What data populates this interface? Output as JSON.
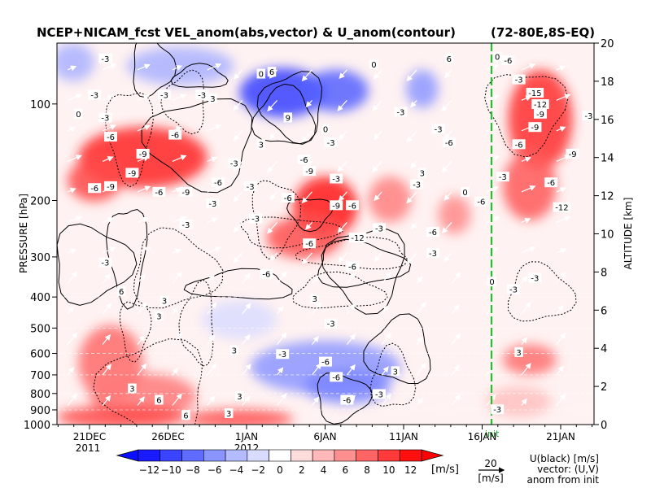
{
  "chart_data": {
    "type": "heatmap",
    "title": "NCEP+NICAM_fcst VEL_anom(abs,vector) & U_anom(contour)",
    "region": "(72-80E,8S-EQ)",
    "ylabel": "PRESSURE [hPa]",
    "y2label": "ALTITUDE [km]",
    "y_ticks": [
      100,
      200,
      300,
      400,
      500,
      600,
      700,
      800,
      900,
      1000
    ],
    "y_tick_labels": [
      "100",
      "200",
      "300",
      "400",
      "500",
      "600",
      "700",
      "800",
      "900",
      "1000"
    ],
    "y2_ticks": [
      0,
      2,
      4,
      6,
      8,
      10,
      12,
      14,
      16,
      18,
      20
    ],
    "y2_tick_labels": [
      "0",
      "2",
      "4",
      "6",
      "8",
      "10",
      "12",
      "14",
      "16",
      "18",
      "20"
    ],
    "x_tick_labels": [
      "21DEC",
      "26DEC",
      "1JAN",
      "6JAN",
      "11JAN",
      "16JAN",
      "21JAN"
    ],
    "x_year_labels": [
      "2011",
      "2012"
    ],
    "init_label": "init",
    "colorbar": {
      "ticks": [
        -12,
        -10,
        -8,
        -6,
        -4,
        -2,
        0,
        2,
        4,
        6,
        8,
        10,
        12
      ],
      "tick_labels": [
        "−12",
        "−10",
        "−8",
        "−6",
        "−4",
        "−2",
        "0",
        "2",
        "4",
        "6",
        "8",
        "10",
        "12"
      ],
      "unit": "[m/s]",
      "colors": [
        "#1a1aff",
        "#3a44ff",
        "#5f6cff",
        "#8b95ff",
        "#b4bbff",
        "#dadcff",
        "#ffffff",
        "#ffdcdc",
        "#ffb9b9",
        "#ff9090",
        "#ff6565",
        "#ff3a3a",
        "#ff1010"
      ]
    },
    "legend": {
      "ref_value": "20",
      "ref_unit": "[m/s]",
      "lines": [
        "U(black) [m/s]",
        "vector: (U,V)",
        "anom from init"
      ]
    },
    "contour_labels": [
      {
        "v": "-3",
        "x": 0.09,
        "y": 19.2
      },
      {
        "v": "-3",
        "x": 0.07,
        "y": 17.3
      },
      {
        "v": "-3",
        "x": 0.2,
        "y": 17.3
      },
      {
        "v": "-3",
        "x": 0.27,
        "y": 17.3
      },
      {
        "v": "0",
        "x": 0.04,
        "y": 16.3
      },
      {
        "v": "-3",
        "x": 0.09,
        "y": 16.1
      },
      {
        "v": "-6",
        "x": 0.1,
        "y": 15.1
      },
      {
        "v": "-6",
        "x": 0.22,
        "y": 15.2
      },
      {
        "v": "-6",
        "x": -0.01,
        "y": 14.5
      },
      {
        "v": "-9",
        "x": 0.16,
        "y": 14.2
      },
      {
        "v": "-9",
        "x": 0.14,
        "y": 13.2
      },
      {
        "v": "-3",
        "x": 0.33,
        "y": 13.7
      },
      {
        "v": "-6",
        "x": 0.07,
        "y": 12.4
      },
      {
        "v": "-9",
        "x": 0.1,
        "y": 12.5
      },
      {
        "v": "-6",
        "x": 0.19,
        "y": 12.2
      },
      {
        "v": "-9",
        "x": 0.24,
        "y": 12.2
      },
      {
        "v": "-6",
        "x": 0.3,
        "y": 12.7
      },
      {
        "v": "-3",
        "x": 0.36,
        "y": 12.5
      },
      {
        "v": "-3",
        "x": 0.24,
        "y": 10.5
      },
      {
        "v": "-3",
        "x": 0.29,
        "y": 11.6
      },
      {
        "v": "-6",
        "x": 0.43,
        "y": 11.9
      },
      {
        "v": "0",
        "x": 0.38,
        "y": 18.4
      },
      {
        "v": "6",
        "x": 0.4,
        "y": 18.5
      },
      {
        "v": "3",
        "x": 0.29,
        "y": 17.1
      },
      {
        "v": "9",
        "x": 0.43,
        "y": 16.1
      },
      {
        "v": "3",
        "x": 0.38,
        "y": 14.7
      },
      {
        "v": "0",
        "x": 0.5,
        "y": 15.5
      },
      {
        "v": "-3",
        "x": 0.51,
        "y": 14.8
      },
      {
        "v": "-6",
        "x": 0.46,
        "y": 13.9
      },
      {
        "v": "-9",
        "x": 0.47,
        "y": 13.3
      },
      {
        "v": "-3",
        "x": 0.52,
        "y": 12.9
      },
      {
        "v": "-9",
        "x": 0.52,
        "y": 11.5
      },
      {
        "v": "-6",
        "x": 0.55,
        "y": 11.5
      },
      {
        "v": "-12",
        "x": 0.56,
        "y": 9.8
      },
      {
        "v": "-6",
        "x": 0.47,
        "y": 9.5
      },
      {
        "v": "-6",
        "x": 0.55,
        "y": 8.3
      },
      {
        "v": "-6",
        "x": 0.39,
        "y": 7.9
      },
      {
        "v": "-3",
        "x": 0.37,
        "y": 10.8
      },
      {
        "v": "-3",
        "x": 0.6,
        "y": 10.3
      },
      {
        "v": "-3",
        "x": 0.7,
        "y": 9.0
      },
      {
        "v": "-6",
        "x": 0.7,
        "y": 10.1
      },
      {
        "v": "-3",
        "x": 0.64,
        "y": 16.4
      },
      {
        "v": "-3",
        "x": 0.71,
        "y": 15.5
      },
      {
        "v": "-6",
        "x": 0.73,
        "y": 14.8
      },
      {
        "v": "3",
        "x": 0.68,
        "y": 13.2
      },
      {
        "v": "-3",
        "x": 0.67,
        "y": 12.6
      },
      {
        "v": "0",
        "x": 0.76,
        "y": 12.2
      },
      {
        "v": "-6",
        "x": 0.79,
        "y": 11.7
      },
      {
        "v": "0",
        "x": 0.59,
        "y": 18.9
      },
      {
        "v": "6",
        "x": 0.73,
        "y": 19.2
      },
      {
        "v": "0",
        "x": 0.82,
        "y": 19.3
      },
      {
        "v": "-6",
        "x": 0.84,
        "y": 19.1
      },
      {
        "v": "-3",
        "x": 0.86,
        "y": 18.1
      },
      {
        "v": "-15",
        "x": 0.89,
        "y": 17.4
      },
      {
        "v": "-12",
        "x": 0.9,
        "y": 16.8
      },
      {
        "v": "-9",
        "x": 0.9,
        "y": 16.3
      },
      {
        "v": "-9",
        "x": 0.89,
        "y": 15.6
      },
      {
        "v": "-3",
        "x": 0.99,
        "y": 16.2
      },
      {
        "v": "-6",
        "x": 0.86,
        "y": 14.7
      },
      {
        "v": "-9",
        "x": 0.96,
        "y": 14.2
      },
      {
        "v": "-6",
        "x": 0.92,
        "y": 12.7
      },
      {
        "v": "-12",
        "x": 0.94,
        "y": 11.4
      },
      {
        "v": "-3",
        "x": 0.83,
        "y": 13.0
      },
      {
        "v": "-3",
        "x": 0.89,
        "y": 7.7
      },
      {
        "v": "0",
        "x": 0.81,
        "y": 7.5
      },
      {
        "v": "-3",
        "x": 0.85,
        "y": 7.1
      },
      {
        "v": "-3",
        "x": 0.09,
        "y": 8.5
      },
      {
        "v": "6",
        "x": 0.12,
        "y": 7.0
      },
      {
        "v": "3",
        "x": 0.2,
        "y": 6.5
      },
      {
        "v": "3",
        "x": 0.48,
        "y": 6.6
      },
      {
        "v": "3",
        "x": 0.19,
        "y": 5.7
      },
      {
        "v": "3",
        "x": 0.33,
        "y": 3.9
      },
      {
        "v": "-3",
        "x": 0.51,
        "y": 5.3
      },
      {
        "v": "-3",
        "x": 0.42,
        "y": 3.7
      },
      {
        "v": "-6",
        "x": 0.5,
        "y": 3.3
      },
      {
        "v": "-6",
        "x": 0.52,
        "y": 2.5
      },
      {
        "v": "-3",
        "x": 0.6,
        "y": 1.6
      },
      {
        "v": "-6",
        "x": 0.54,
        "y": 1.3
      },
      {
        "v": "3",
        "x": 0.63,
        "y": 2.8
      },
      {
        "v": "3",
        "x": 0.86,
        "y": 3.8
      },
      {
        "v": "3",
        "x": 0.14,
        "y": 1.9
      },
      {
        "v": "6",
        "x": 0.19,
        "y": 1.3
      },
      {
        "v": "3",
        "x": 0.34,
        "y": 1.5
      },
      {
        "v": "6",
        "x": 0.24,
        "y": 0.5
      },
      {
        "v": "3",
        "x": 0.32,
        "y": 0.6
      },
      {
        "v": "-3",
        "x": 0.82,
        "y": 0.8
      }
    ]
  }
}
